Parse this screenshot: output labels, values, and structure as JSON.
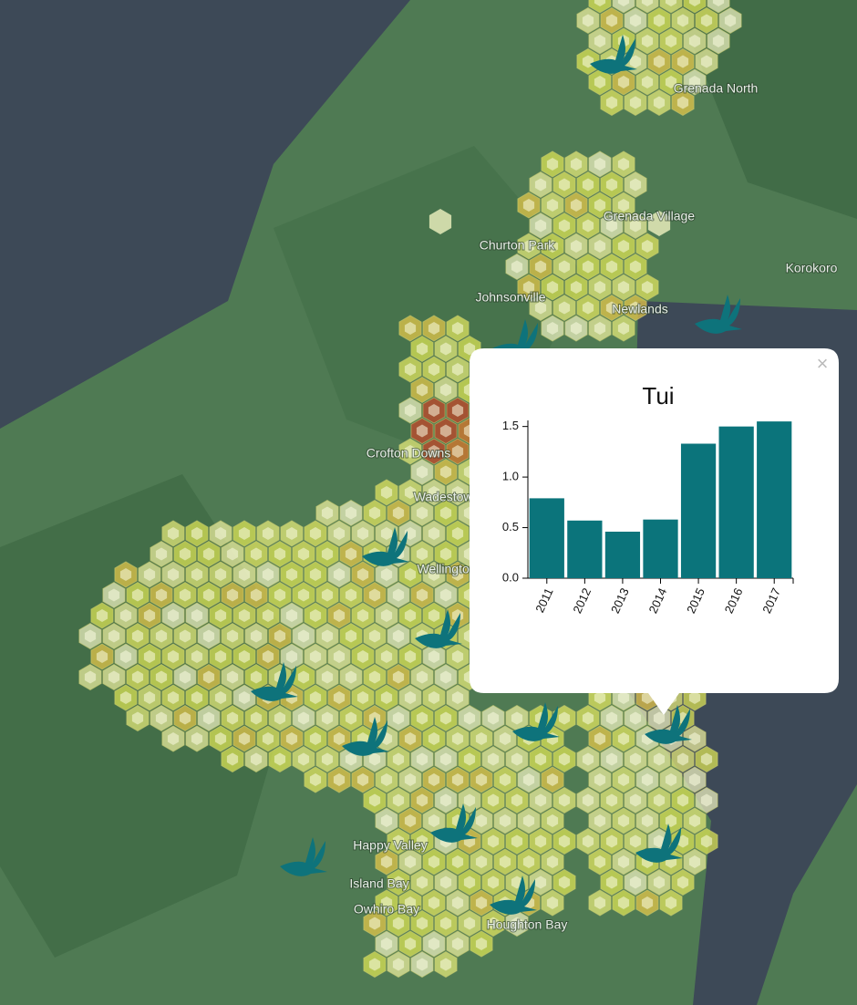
{
  "map": {
    "labels": [
      "Grenada North",
      "Grenada Village",
      "Churton Park",
      "Johnsonville",
      "Newlands",
      "Korokoro",
      "Crofton Downs",
      "Wadestown",
      "Wellington",
      "Happy Valley",
      "Island Bay",
      "Owhiro Bay",
      "Houghton Bay"
    ]
  },
  "popup": {
    "close": "×"
  },
  "chart_data": {
    "type": "bar",
    "title": "Tui",
    "categories": [
      "2011",
      "2012",
      "2013",
      "2014",
      "2015",
      "2016",
      "2017"
    ],
    "values": [
      0.79,
      0.57,
      0.46,
      0.58,
      1.33,
      1.5,
      1.55
    ],
    "color": "#0b747b",
    "ylim": [
      0,
      1.56
    ],
    "yticks": [
      {
        "value": 0,
        "label": "0.0"
      },
      0.5,
      {
        "value": 1,
        "label": "1.0"
      },
      1.5
    ]
  }
}
